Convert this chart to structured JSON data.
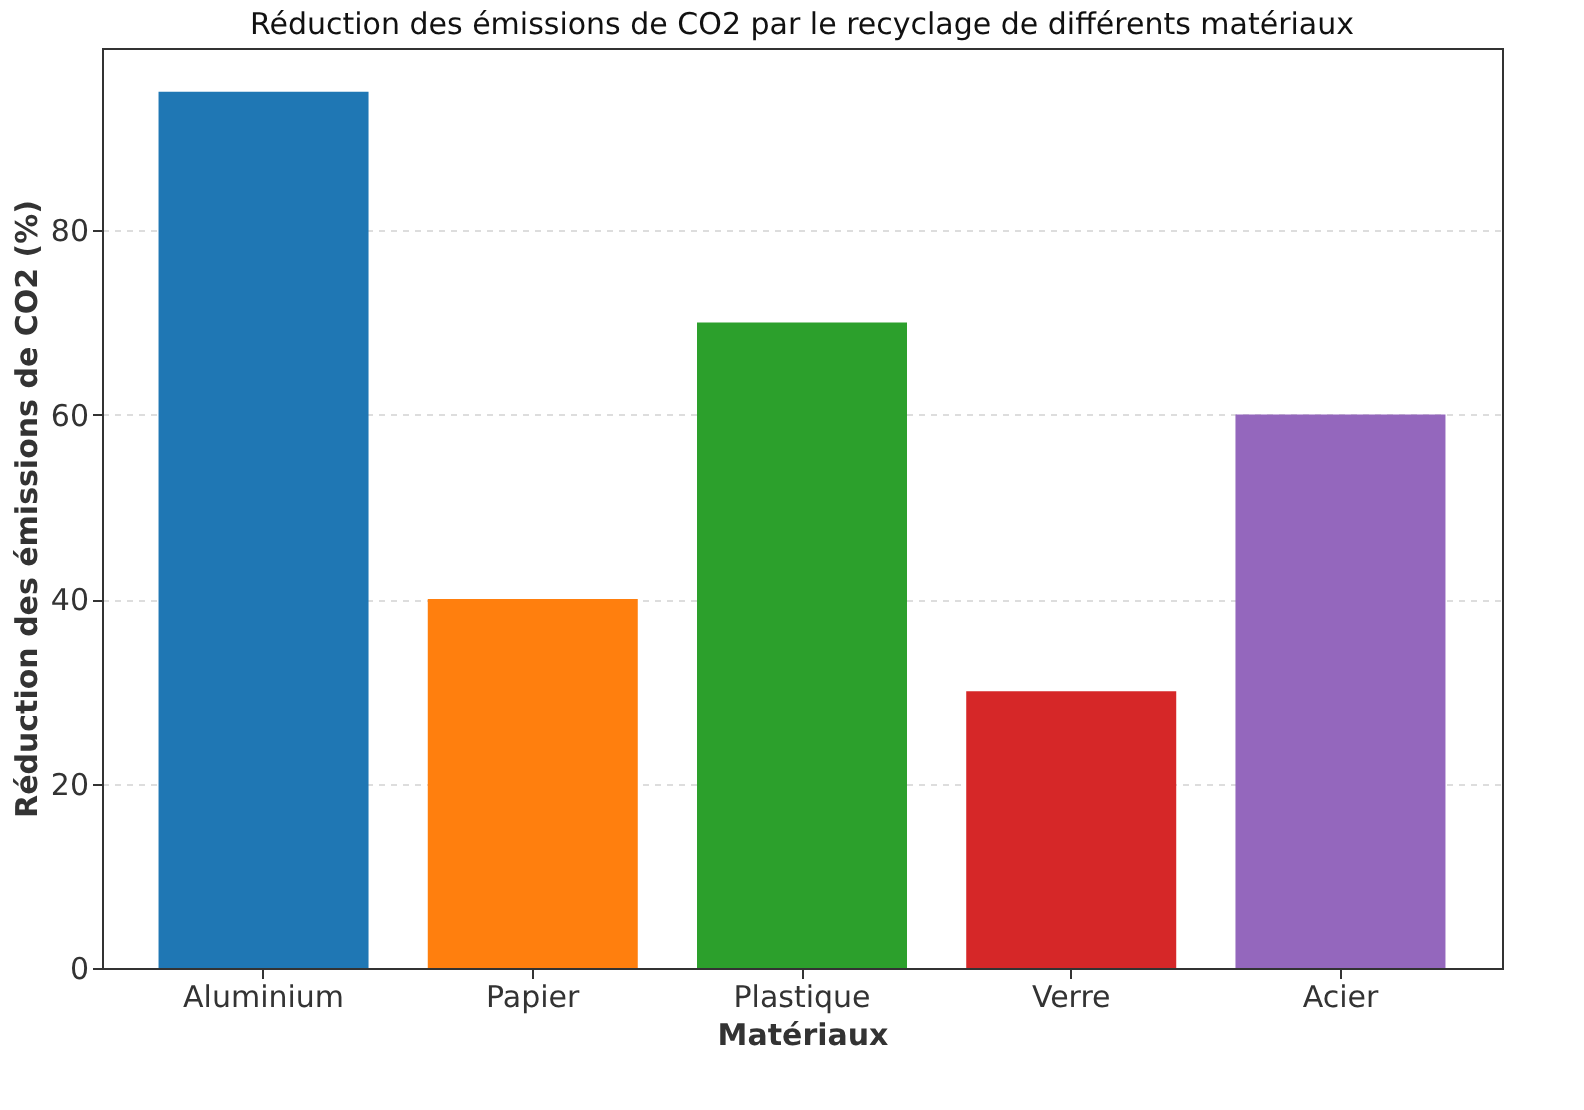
{
  "chart_data": {
    "type": "bar",
    "title": "Réduction des émissions de CO2 par le recyclage de différents matériaux",
    "xlabel": "Matériaux",
    "ylabel": "Réduction des émissions de CO2 (%)",
    "categories": [
      "Aluminium",
      "Papier",
      "Plastique",
      "Verre",
      "Acier"
    ],
    "values": [
      95,
      40,
      70,
      30,
      60
    ],
    "colors": [
      "#1f77b4",
      "#ff7f0e",
      "#2ca02c",
      "#d62728",
      "#9467bd"
    ],
    "ylim": [
      0,
      99.75
    ],
    "yticks": [
      0,
      20,
      40,
      60,
      80
    ],
    "grid": "y"
  }
}
